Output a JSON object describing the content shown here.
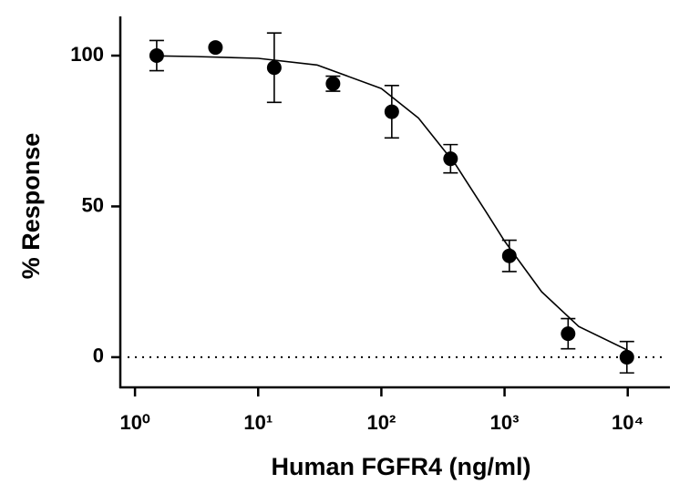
{
  "chart_data": {
    "type": "scatter",
    "x_label": "Human FGFR4 (ng/ml)",
    "y_label": "% Response",
    "x_scale": "log",
    "xlim": [
      0.76,
      22000
    ],
    "xticks": [
      {
        "value": 1,
        "label": "10⁰"
      },
      {
        "value": 10,
        "label": "10¹"
      },
      {
        "value": 100,
        "label": "10²"
      },
      {
        "value": 1000,
        "label": "10³"
      },
      {
        "value": 10000,
        "label": "10⁴"
      }
    ],
    "ylim": [
      -10,
      113
    ],
    "yticks": [
      0,
      50,
      100
    ],
    "reference_line": 0,
    "color": "#000000",
    "x": [
      1.5,
      4.5,
      13.5,
      40.5,
      121.5,
      364.5,
      1093.5,
      3280.5,
      9841.5
    ],
    "values": [
      100,
      102.7,
      96,
      90.7,
      81.4,
      65.8,
      33.6,
      7.8,
      0
    ],
    "errors": [
      5,
      null,
      11.5,
      2.5,
      8.7,
      4.7,
      5.2,
      5,
      5.2
    ],
    "curve": {
      "x": [
        1.5,
        3,
        10,
        30,
        100,
        200,
        400,
        700,
        1000,
        2000,
        4000,
        10000
      ],
      "values": [
        99.9,
        99.7,
        99.1,
        96.9,
        89.1,
        79.3,
        63.9,
        48.5,
        38.5,
        21.7,
        10.2,
        2.3
      ]
    }
  }
}
